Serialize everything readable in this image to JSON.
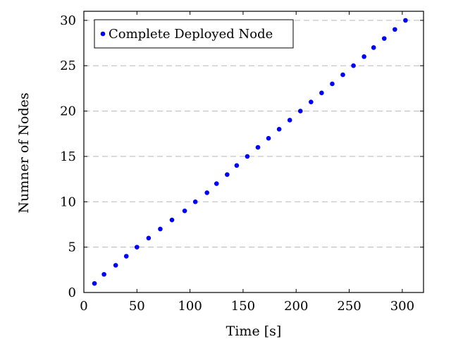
{
  "chart_data": {
    "type": "scatter",
    "title": "",
    "xlabel": "Time [s]",
    "ylabel": "Numner of Nodes",
    "xlim": [
      0,
      320
    ],
    "ylim": [
      0,
      31
    ],
    "xticks": [
      0,
      50,
      100,
      150,
      200,
      250,
      300
    ],
    "yticks": [
      0,
      5,
      10,
      15,
      20,
      25,
      30
    ],
    "grid": "horizontal-dashed",
    "legend_position": "top-left",
    "series": [
      {
        "name": "Complete Deployed Node",
        "color": "#0000ff",
        "marker": "circle",
        "points": [
          {
            "x": 10,
            "y": 1
          },
          {
            "x": 19,
            "y": 2
          },
          {
            "x": 30,
            "y": 3
          },
          {
            "x": 40,
            "y": 4
          },
          {
            "x": 50,
            "y": 5
          },
          {
            "x": 61,
            "y": 6
          },
          {
            "x": 72,
            "y": 7
          },
          {
            "x": 83,
            "y": 8
          },
          {
            "x": 95,
            "y": 9
          },
          {
            "x": 105,
            "y": 10
          },
          {
            "x": 116,
            "y": 11
          },
          {
            "x": 125,
            "y": 12
          },
          {
            "x": 135,
            "y": 13
          },
          {
            "x": 144,
            "y": 14
          },
          {
            "x": 154,
            "y": 15
          },
          {
            "x": 164,
            "y": 16
          },
          {
            "x": 174,
            "y": 17
          },
          {
            "x": 184,
            "y": 18
          },
          {
            "x": 194,
            "y": 19
          },
          {
            "x": 204,
            "y": 20
          },
          {
            "x": 214,
            "y": 21
          },
          {
            "x": 224,
            "y": 22
          },
          {
            "x": 234,
            "y": 23
          },
          {
            "x": 244,
            "y": 24
          },
          {
            "x": 254,
            "y": 25
          },
          {
            "x": 264,
            "y": 26
          },
          {
            "x": 273,
            "y": 27
          },
          {
            "x": 283,
            "y": 28
          },
          {
            "x": 293,
            "y": 29
          },
          {
            "x": 303,
            "y": 30
          }
        ]
      }
    ]
  }
}
